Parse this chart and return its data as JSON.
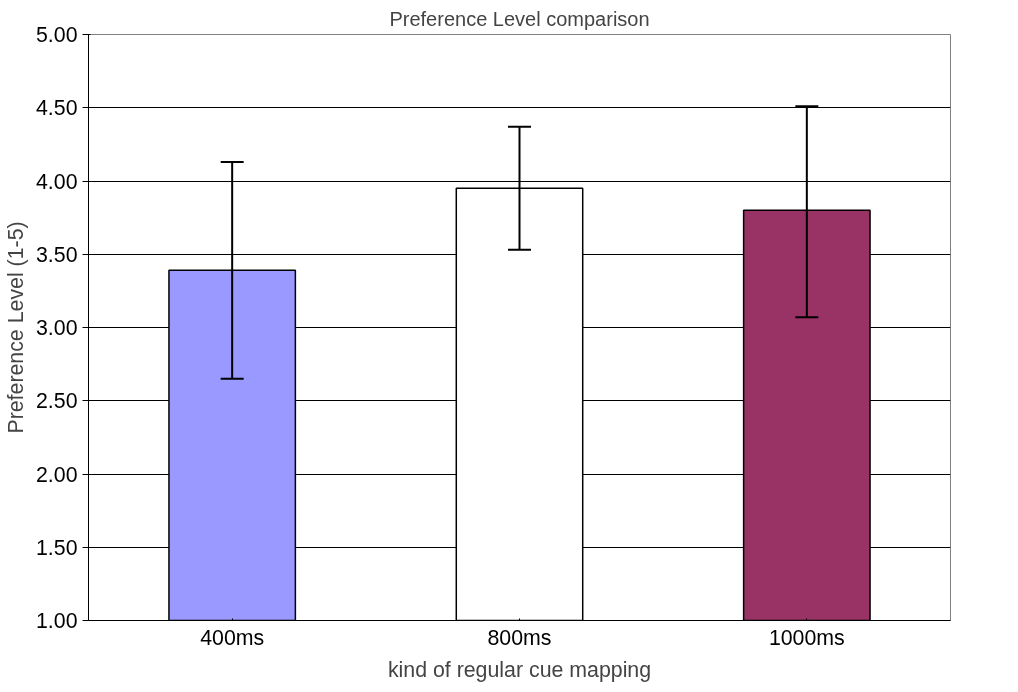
{
  "chart_data": {
    "type": "bar",
    "title": "Preference Level comparison",
    "xlabel": "kind of regular cue mapping",
    "ylabel": "Preference Level (1-5)",
    "categories": [
      "400ms",
      "800ms",
      "1000ms"
    ],
    "values": [
      3.39,
      3.95,
      3.8
    ],
    "colors": [
      "#9999ff",
      "#ffffff",
      "#993366"
    ],
    "errors": [
      [
        2.65,
        4.13
      ],
      [
        3.53,
        4.37
      ],
      [
        3.07,
        4.51
      ]
    ],
    "ylim": [
      1.0,
      5.0
    ],
    "yticks": [
      {
        "value": 1.0,
        "label": "1.00"
      },
      {
        "value": 1.5,
        "label": "1.50"
      },
      {
        "value": 2.0,
        "label": "2.00"
      },
      {
        "value": 2.5,
        "label": "2.50"
      },
      {
        "value": 3.0,
        "label": "3.00"
      },
      {
        "value": 3.5,
        "label": "3.50"
      },
      {
        "value": 4.0,
        "label": "4.00"
      },
      {
        "value": 4.5,
        "label": "4.50"
      },
      {
        "value": 5.0,
        "label": "5.00"
      }
    ],
    "grid": "y"
  }
}
